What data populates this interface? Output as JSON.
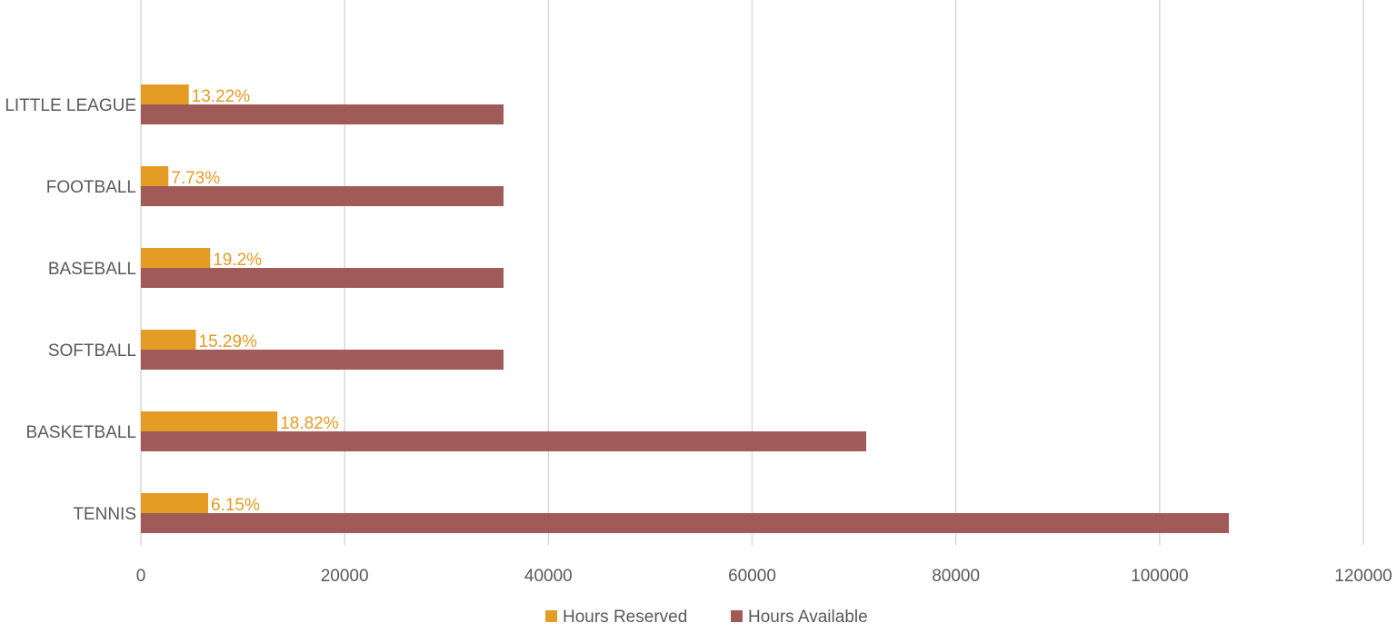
{
  "chart_data": {
    "type": "bar",
    "orientation": "horizontal",
    "title": "",
    "xlabel": "",
    "ylabel": "",
    "categories": [
      "TENNIS",
      "BASKETBALL",
      "SOFTBALL",
      "BASEBALL",
      "FOOTBALL",
      "LITTLE LEAGUE"
    ],
    "series": [
      {
        "name": "Hours Reserved",
        "color": "#E49C24",
        "values": [
          6600,
          13400,
          5400,
          6800,
          2700,
          4700
        ],
        "data_labels": [
          "6.15%",
          "18.82%",
          "15.29%",
          "19.2%",
          "7.73%",
          "13.22%"
        ]
      },
      {
        "name": "Hours Available",
        "color": "#A05A58",
        "values": [
          106800,
          71200,
          35600,
          35600,
          35600,
          35600
        ]
      }
    ],
    "xlim": [
      0,
      120000
    ],
    "x_ticks": [
      "0",
      "20000",
      "40000",
      "60000",
      "80000",
      "100000",
      "120000"
    ],
    "grid": "vertical",
    "legend_position": "bottom"
  }
}
